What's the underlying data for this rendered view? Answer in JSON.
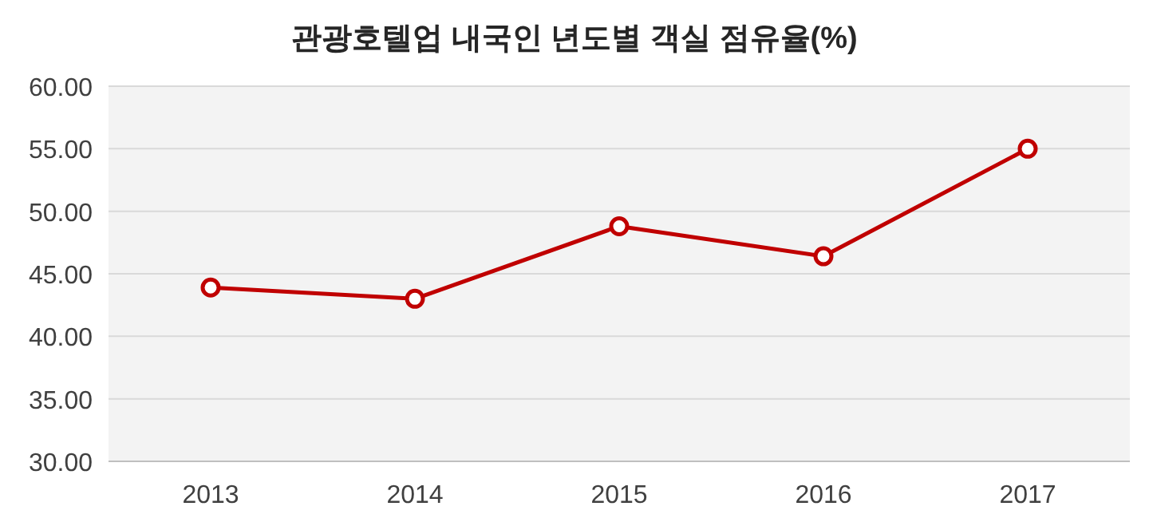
{
  "chart_data": {
    "type": "line",
    "title": "관광호텔업 내국인 년도별 객실 점유율(%)",
    "categories": [
      "2013",
      "2014",
      "2015",
      "2016",
      "2017"
    ],
    "series": [
      {
        "color": "#c00000",
        "values": [
          43.9,
          43.0,
          48.8,
          46.4,
          55.0
        ]
      }
    ],
    "ylim": [
      30,
      60
    ],
    "yticks": [
      {
        "value": 30,
        "label": "30.00"
      },
      {
        "value": 35,
        "label": "35.00"
      },
      {
        "value": 40,
        "label": "40.00"
      },
      {
        "value": 45,
        "label": "45.00"
      },
      {
        "value": 50,
        "label": "50.00"
      },
      {
        "value": 55,
        "label": "55.00"
      },
      {
        "value": 60,
        "label": "60.00"
      }
    ],
    "grid": "y",
    "marker": "circle",
    "line_style": "solid"
  }
}
